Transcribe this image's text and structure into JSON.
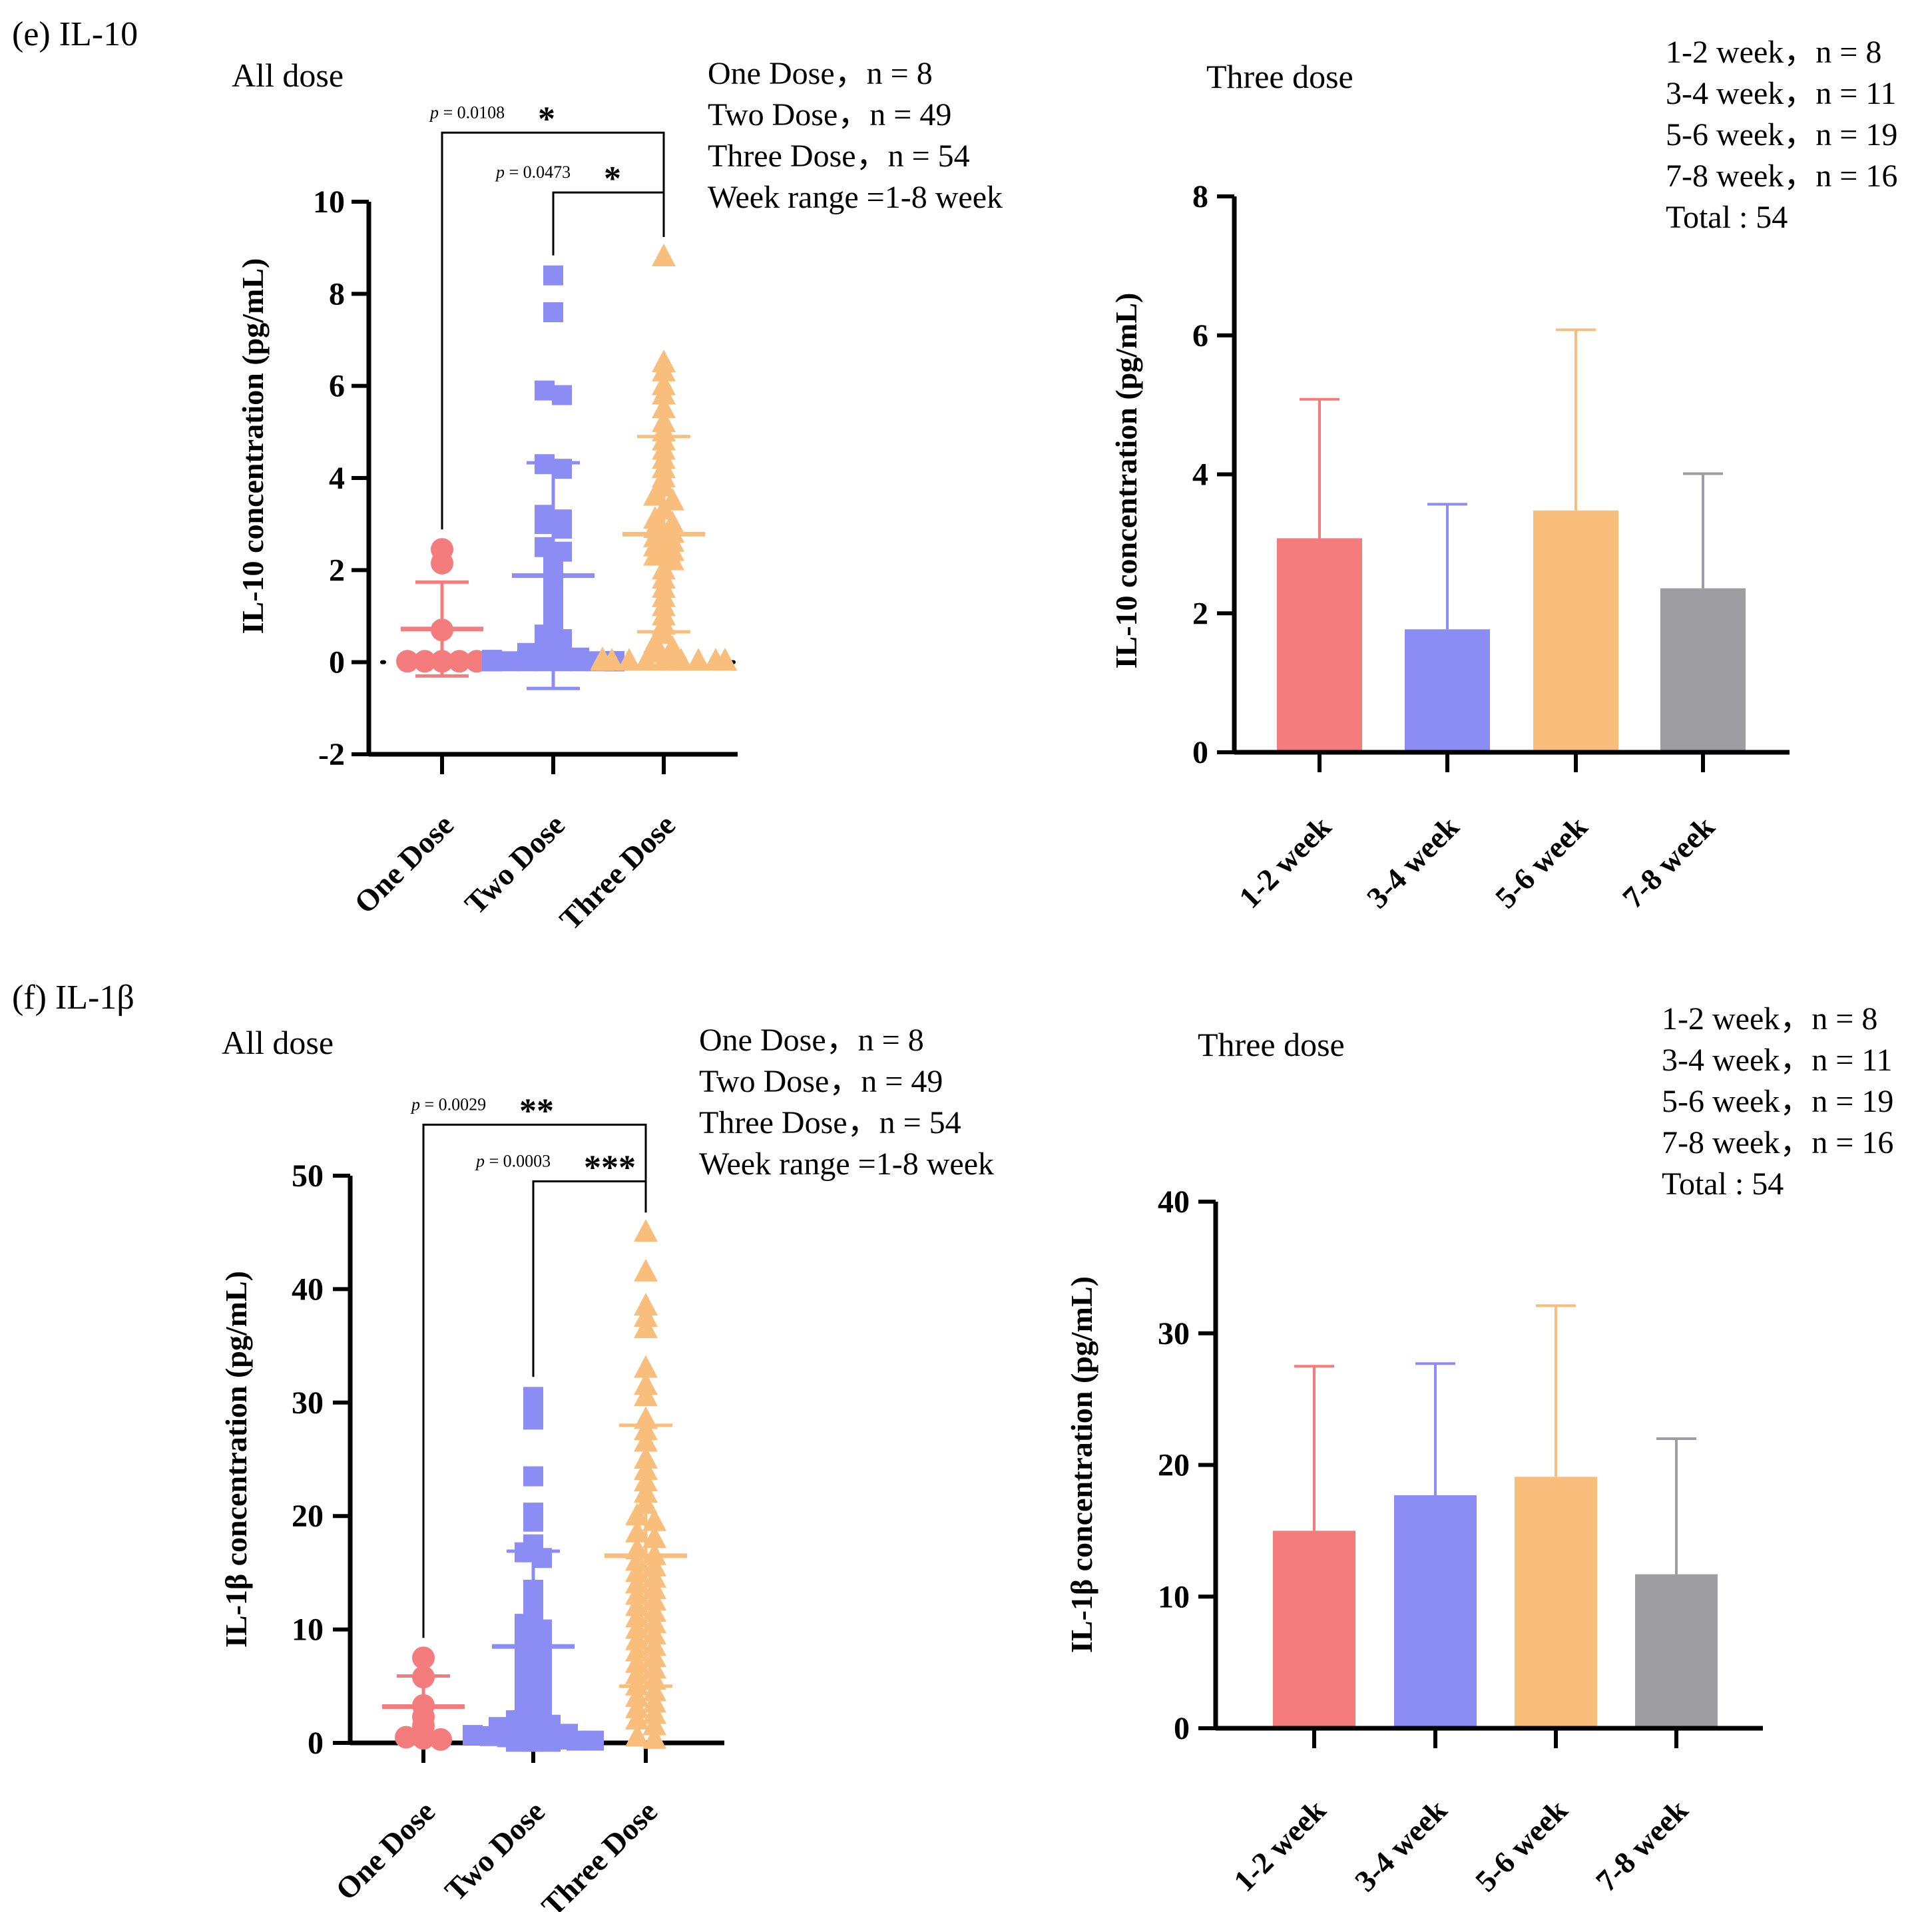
{
  "colors": {
    "red": "#F47C7C",
    "blue": "#8C8CF5",
    "orange": "#F9BE7C",
    "gray": "#9E9EA2",
    "axis": "#000000"
  },
  "panels": [
    {
      "id": "e",
      "label": "(e)  IL-10",
      "left": {
        "subtitle": "All dose",
        "legend": [
          "One Dose，n = 8",
          "Two Dose，n = 49",
          "Three Dose，n = 54",
          "Week range =1-8 week"
        ],
        "comparisons": [
          {
            "p_text": "p = 0.0108",
            "stars": "*"
          },
          {
            "p_text": "p = 0.0473",
            "stars": "*"
          }
        ]
      },
      "right": {
        "subtitle": "Three dose",
        "legend": [
          "1-2 week，n = 8",
          "3-4 week，n = 11",
          "5-6 week，n = 19",
          "7-8 week，n = 16",
          "Total : 54"
        ]
      }
    },
    {
      "id": "f",
      "label": "(f)  IL-1β",
      "left": {
        "subtitle": "All dose",
        "legend": [
          "One Dose，n = 8",
          "Two Dose，n = 49",
          "Three Dose，n = 54",
          "Week range =1-8 week"
        ],
        "comparisons": [
          {
            "p_text": "p = 0.0029",
            "stars": "**"
          },
          {
            "p_text": "p = 0.0003",
            "stars": "***"
          }
        ]
      },
      "right": {
        "subtitle": "Three dose",
        "legend": [
          "1-2 week，n = 8",
          "3-4 week，n = 11",
          "5-6 week，n = 19",
          "7-8 week，n = 16",
          "Total : 54"
        ]
      }
    }
  ],
  "chart_data": [
    {
      "id": "e-left",
      "type": "scatter",
      "title": "All dose",
      "ylabel": "IL-10 concentration (pg/mL)",
      "categories": [
        "One Dose",
        "Two Dose",
        "Three Dose"
      ],
      "ylim": [
        -2,
        10
      ],
      "yticks": [
        -2,
        0,
        2,
        4,
        6,
        8,
        10
      ],
      "zero_line": "dotted",
      "series": [
        {
          "name": "One Dose",
          "color": "red",
          "marker": "circle",
          "mean": 0.72,
          "sd": 1.02,
          "values": [
            2.45,
            2.15,
            0.7,
            0.02,
            0.02,
            0.02,
            0.02,
            0.02
          ]
        },
        {
          "name": "Two Dose",
          "color": "blue",
          "marker": "square",
          "mean": 1.88,
          "sd": 2.45,
          "values": [
            8.4,
            7.6,
            5.8,
            5.9,
            4.3,
            4.2,
            3.2,
            3.1,
            3.0,
            2.9,
            2.5,
            2.4,
            2.2,
            2.0,
            1.8,
            1.6,
            1.2,
            1.0,
            0.8,
            0.6,
            0.5,
            0.4,
            0.3,
            0.2,
            0.15,
            0.1,
            0.1,
            0.05,
            0.05,
            0.03,
            0.02,
            0.02,
            0.02,
            0.02,
            0.02,
            0.02,
            0.02,
            0.02,
            0.02,
            0.02,
            0.02,
            0.02,
            0.02,
            0.02,
            0.02,
            0.02,
            0.02,
            0.02,
            0.02
          ]
        },
        {
          "name": "Three Dose",
          "color": "orange",
          "marker": "triangle",
          "mean": 2.78,
          "sd": 2.12,
          "values": [
            8.8,
            6.5,
            6.3,
            6.0,
            5.8,
            5.5,
            5.2,
            5.0,
            4.8,
            4.6,
            4.4,
            4.2,
            4.0,
            3.8,
            3.6,
            3.5,
            3.3,
            3.1,
            3.0,
            2.9,
            2.8,
            2.7,
            2.6,
            2.5,
            2.4,
            2.3,
            2.2,
            2.0,
            1.8,
            1.6,
            1.4,
            1.2,
            1.0,
            0.8,
            0.6,
            0.4,
            0.3,
            0.2,
            0.1,
            0.05,
            0.02,
            0.02,
            0.02,
            0.02,
            0.02,
            0.02,
            0.02,
            0.02,
            0.02,
            0.02,
            0.02,
            0.02,
            0.02,
            0.02
          ]
        }
      ],
      "brackets": [
        {
          "from": 0,
          "to": 2,
          "level": 11.5,
          "p": 0.0108,
          "stars": "*"
        },
        {
          "from": 1,
          "to": 2,
          "level": 10.2,
          "p": 0.0473,
          "stars": "*"
        }
      ]
    },
    {
      "id": "e-right",
      "type": "bar",
      "title": "Three dose",
      "ylabel": "IL-10 concentration (pg/mL)",
      "categories": [
        "1-2 week",
        "3-4 week",
        "5-6 week",
        "7-8 week"
      ],
      "colors": [
        "red",
        "blue",
        "orange",
        "gray"
      ],
      "values": [
        3.08,
        1.77,
        3.48,
        2.36
      ],
      "errors": [
        2.0,
        1.8,
        2.6,
        1.65
      ],
      "ylim": [
        0,
        8
      ],
      "yticks": [
        0,
        2,
        4,
        6,
        8
      ]
    },
    {
      "id": "f-left",
      "type": "scatter",
      "title": "All dose",
      "ylabel": "IL-1β concentration (pg/mL)",
      "categories": [
        "One Dose",
        "Two Dose",
        "Three Dose"
      ],
      "ylim": [
        0,
        50
      ],
      "yticks": [
        0,
        10,
        20,
        30,
        40,
        50
      ],
      "zero_line": "none",
      "series": [
        {
          "name": "One Dose",
          "color": "red",
          "marker": "circle",
          "mean": 3.2,
          "sd": 2.7,
          "values": [
            7.5,
            5.8,
            3.3,
            2.3,
            1.5,
            0.5,
            0.3,
            0.4
          ]
        },
        {
          "name": "Two Dose",
          "color": "blue",
          "marker": "square",
          "mean": 8.5,
          "sd": 8.4,
          "values": [
            30.5,
            29.5,
            28.5,
            23.5,
            20.3,
            19.5,
            17.5,
            16.8,
            16.3,
            13.5,
            12.0,
            11.2,
            10.5,
            10.0,
            9.5,
            9.0,
            8.5,
            8.0,
            7.5,
            7.0,
            6.5,
            6.0,
            5.5,
            5.0,
            4.5,
            4.0,
            3.6,
            3.2,
            2.8,
            2.4,
            2.0,
            1.8,
            1.6,
            1.4,
            1.2,
            1.0,
            0.9,
            0.8,
            0.7,
            0.6,
            0.5,
            0.4,
            0.3,
            0.3,
            0.2,
            0.2,
            0.1,
            0.1,
            0.1
          ]
        },
        {
          "name": "Three Dose",
          "color": "orange",
          "marker": "triangle",
          "mean": 16.5,
          "sd": 11.5,
          "values": [
            45.0,
            41.5,
            38.5,
            37.5,
            36.5,
            33.0,
            31.5,
            30.5,
            28.5,
            27.5,
            26.5,
            25.0,
            24.0,
            23.0,
            22.0,
            21.0,
            20.0,
            19.5,
            18.5,
            18.0,
            17.0,
            16.5,
            16.0,
            15.5,
            15.0,
            14.5,
            14.0,
            13.5,
            13.0,
            12.5,
            12.0,
            11.5,
            11.0,
            10.5,
            10.0,
            9.5,
            9.0,
            8.5,
            8.0,
            7.5,
            7.0,
            6.5,
            6.0,
            5.5,
            5.0,
            4.5,
            4.0,
            3.5,
            3.0,
            2.5,
            2.0,
            1.5,
            0.5,
            0.3
          ]
        }
      ],
      "brackets": [
        {
          "from": 0,
          "to": 2,
          "level": 54.5,
          "p": 0.0029,
          "stars": "**"
        },
        {
          "from": 1,
          "to": 2,
          "level": 49.5,
          "p": 0.0003,
          "stars": "***"
        }
      ]
    },
    {
      "id": "f-right",
      "type": "bar",
      "title": "Three dose",
      "ylabel": "IL-1β concentration (pg/mL)",
      "categories": [
        "1-2 week",
        "3-4 week",
        "5-6 week",
        "7-8 week"
      ],
      "colors": [
        "red",
        "blue",
        "orange",
        "gray"
      ],
      "values": [
        15.0,
        17.7,
        19.1,
        11.7
      ],
      "errors": [
        12.5,
        10.0,
        13.0,
        10.3
      ],
      "ylim": [
        0,
        40
      ],
      "yticks": [
        0,
        10,
        20,
        30,
        40
      ]
    }
  ]
}
